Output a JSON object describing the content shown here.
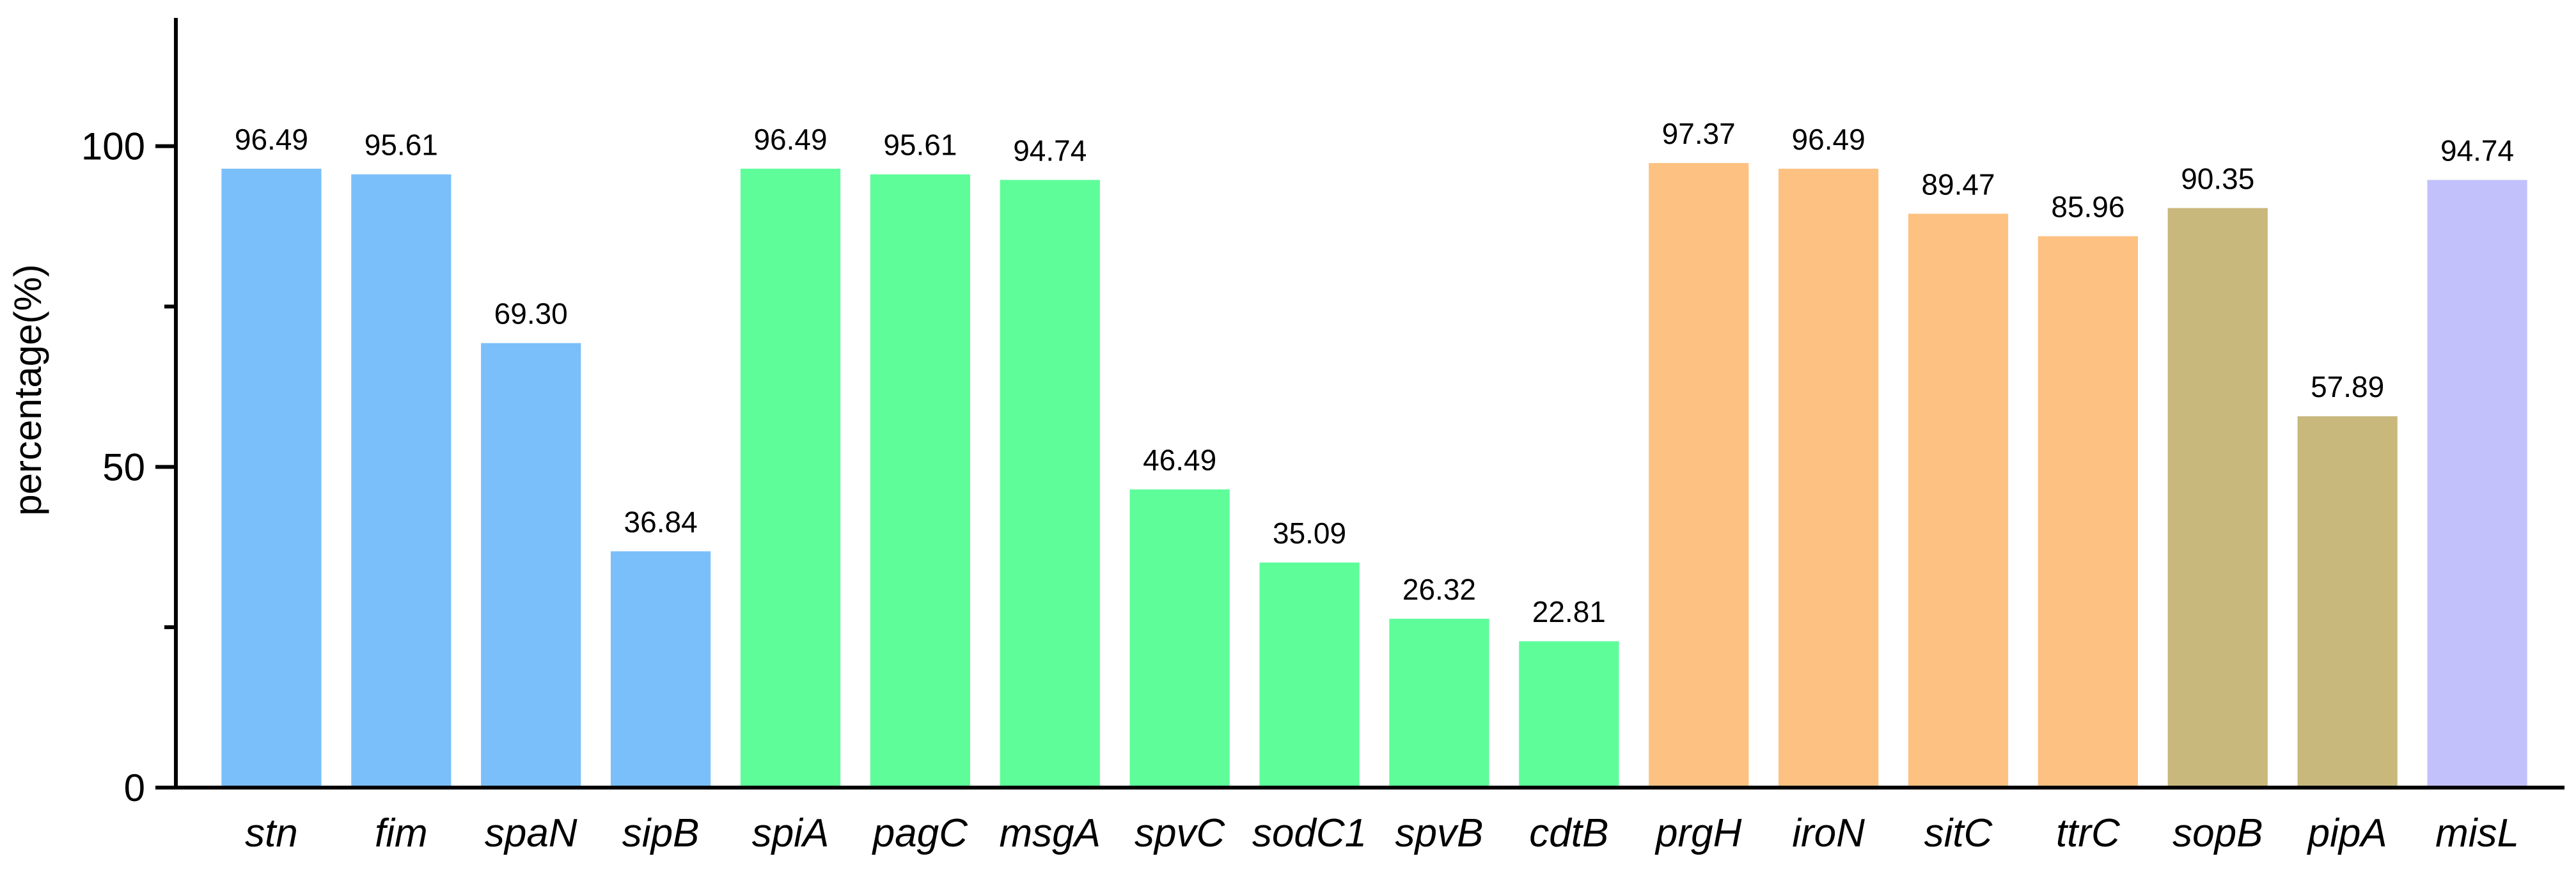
{
  "chart_data": {
    "type": "bar",
    "title": "",
    "xlabel": "",
    "ylabel": "percentage(%)",
    "ylim": [
      0,
      120
    ],
    "yticks": [
      0,
      50,
      100
    ],
    "y_minor_ticks": [
      25,
      75
    ],
    "grid": false,
    "legend": "none",
    "categories": [
      "stn",
      "fim",
      "spaN",
      "sipB",
      "spiA",
      "pagC",
      "msgA",
      "spvC",
      "sodC1",
      "spvB",
      "cdtB",
      "prgH",
      "iroN",
      "sitC",
      "ttrC",
      "sopB",
      "pipA",
      "misL"
    ],
    "values": [
      96.49,
      95.61,
      69.3,
      36.84,
      96.49,
      95.61,
      94.74,
      46.49,
      35.09,
      26.32,
      22.81,
      97.37,
      96.49,
      89.47,
      85.96,
      90.35,
      57.89,
      94.74
    ],
    "value_labels": [
      "96.49",
      "95.61",
      "69.30",
      "36.84",
      "96.49",
      "95.61",
      "94.74",
      "46.49",
      "35.09",
      "26.32",
      "22.81",
      "97.37",
      "96.49",
      "89.47",
      "85.96",
      "90.35",
      "57.89",
      "94.74"
    ],
    "colors": [
      "#7bbffa",
      "#7bbffa",
      "#7bbffa",
      "#7bbffa",
      "#5efd9a",
      "#5efd9a",
      "#5efd9a",
      "#5efd9a",
      "#5efd9a",
      "#5efd9a",
      "#5efd9a",
      "#fdc181",
      "#fdc181",
      "#fdc181",
      "#fdc181",
      "#c8b87c",
      "#c8b87c",
      "#c3c1fb"
    ]
  }
}
